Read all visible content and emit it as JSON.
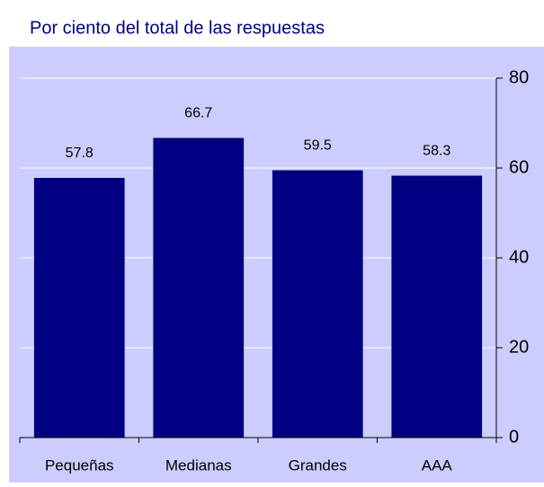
{
  "chart_data": {
    "type": "bar",
    "title": "Por ciento del total de las respuestas",
    "categories": [
      "Pequeñas",
      "Medianas",
      "Grandes",
      "AAA"
    ],
    "values": [
      57.8,
      66.7,
      59.5,
      58.3
    ],
    "color": "#000080",
    "ylim": [
      0,
      80
    ],
    "yticks": [
      0,
      20,
      40,
      60,
      80
    ],
    "grid": true
  }
}
